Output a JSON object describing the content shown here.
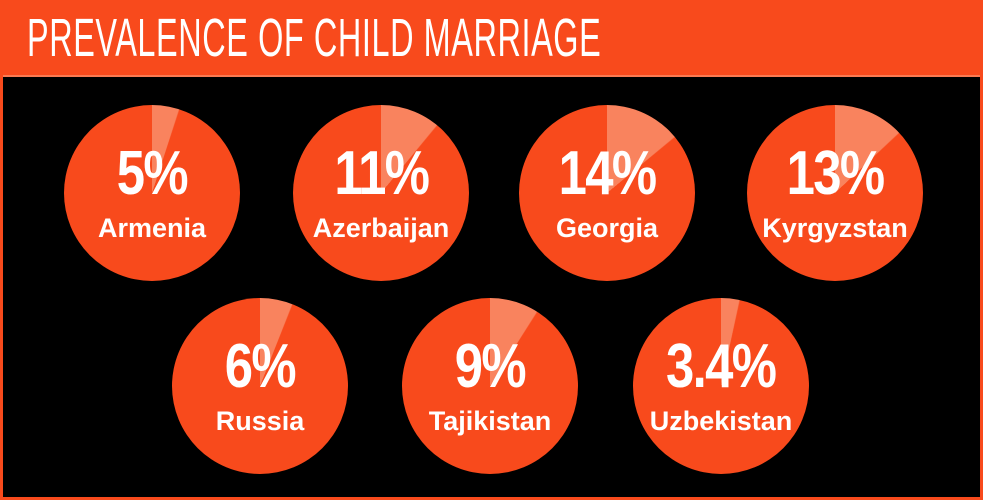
{
  "header": {
    "title": "PREVALENCE OF CHILD MARRIAGE"
  },
  "colors": {
    "background": "#000000",
    "accent_orange": "#f84a1c",
    "wedge_orange": "#f9835e",
    "header_divider": "#fa7a52",
    "text_white": "#ffffff"
  },
  "chart_data": {
    "type": "pie",
    "title": "PREVALENCE OF CHILD MARRIAGE",
    "subtitle": "",
    "unit": "%",
    "note": "seven small-multiple pie circles; lighter wedge = percentage, starts at 12 o'clock and sweeps clockwise",
    "points": [
      {
        "country": "Armenia",
        "value": 5,
        "label": "5%"
      },
      {
        "country": "Azerbaijan",
        "value": 11,
        "label": "11%"
      },
      {
        "country": "Georgia",
        "value": 14,
        "label": "14%"
      },
      {
        "country": "Kyrgyzstan",
        "value": 13,
        "label": "13%"
      },
      {
        "country": "Russia",
        "value": 6,
        "label": "6%"
      },
      {
        "country": "Tajikistan",
        "value": 9,
        "label": "9%"
      },
      {
        "country": "Uzbekistan",
        "value": 3.4,
        "label": "3.4%"
      }
    ],
    "layout": {
      "rows": [
        4,
        3
      ],
      "legend": "none",
      "wedge_start": "12-oclock",
      "wedge_direction": "clockwise"
    }
  }
}
